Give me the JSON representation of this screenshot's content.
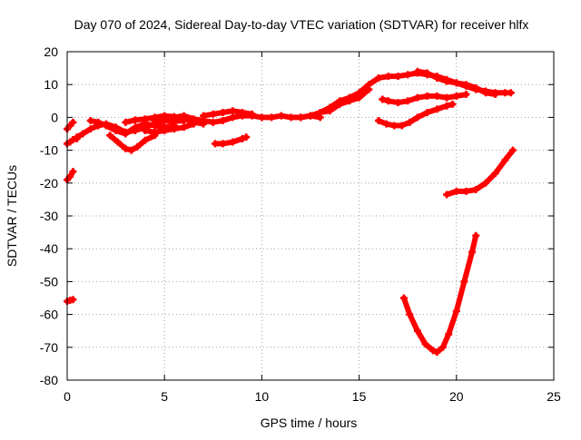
{
  "chart_data": {
    "type": "scatter",
    "title": "Day 070 of 2024, Sidereal Day-to-day VTEC variation (SDTVAR) for receiver hlfx",
    "xlabel": "GPS time / hours",
    "ylabel": "SDTVAR / TECUs",
    "xlim": [
      0,
      25
    ],
    "ylim": [
      -80,
      20
    ],
    "x_ticks": [
      "0",
      "5",
      "10",
      "15",
      "20",
      "25"
    ],
    "y_ticks": [
      "-80",
      "-70",
      "-60",
      "-50",
      "-40",
      "-30",
      "-20",
      "-10",
      "0",
      "10",
      "20"
    ],
    "grid": true,
    "legend": "none",
    "colors": {
      "series": "#ff0000",
      "grid": "#a0a0a0",
      "axis": "#000000"
    },
    "series": [
      {
        "x": [
          0.0,
          0.15,
          0.3
        ],
        "y": [
          -3.5,
          -2.5,
          -1.5
        ]
      },
      {
        "x": [
          0.0,
          0.15,
          0.3,
          0.5
        ],
        "y": [
          -8.0,
          -7.5,
          -6.8,
          -6.5
        ]
      },
      {
        "x": [
          0.0,
          0.15,
          0.3
        ],
        "y": [
          -19.0,
          -18.0,
          -16.5
        ]
      },
      {
        "x": [
          0.0,
          0.15,
          0.3
        ],
        "y": [
          -56.0,
          -55.7,
          -55.5
        ]
      },
      {
        "x": [
          0.5,
          0.8,
          1.2,
          1.6,
          2.0,
          2.5,
          3.0,
          3.5,
          4.0,
          4.5,
          5.0,
          5.5,
          6.0
        ],
        "y": [
          -6.0,
          -5.0,
          -3.5,
          -2.5,
          -2.0,
          -3.0,
          -4.5,
          -4.0,
          -3.0,
          -2.0,
          -1.0,
          -1.2,
          -1.0
        ]
      },
      {
        "x": [
          1.2,
          1.6,
          2.0,
          2.5,
          3.0,
          3.5,
          4.0,
          4.5,
          5.0,
          5.5
        ],
        "y": [
          -1.0,
          -1.5,
          -2.5,
          -4.0,
          -5.0,
          -3.0,
          -2.0,
          -2.5,
          -3.0,
          -2.5
        ]
      },
      {
        "x": [
          2.2,
          2.6,
          3.0,
          3.3,
          3.6,
          4.0,
          4.5
        ],
        "y": [
          -5.5,
          -7.5,
          -9.5,
          -10.0,
          -9.0,
          -7.0,
          -5.5
        ]
      },
      {
        "x": [
          3.0,
          3.5,
          4.0,
          4.5,
          5.0,
          5.5,
          6.0,
          6.5,
          7.0
        ],
        "y": [
          -1.5,
          -0.8,
          -0.5,
          0.0,
          0.5,
          0.2,
          -0.5,
          -1.5,
          -2.0
        ]
      },
      {
        "x": [
          4.0,
          4.5,
          5.0,
          5.5,
          6.0,
          6.5
        ],
        "y": [
          -4.0,
          -4.5,
          -4.0,
          -3.5,
          -3.0,
          -2.0
        ]
      },
      {
        "x": [
          4.5,
          5.0,
          5.5,
          6.0,
          6.5,
          7.0,
          7.5,
          8.0,
          8.5,
          9.0,
          9.5,
          10.0,
          10.5,
          11.0,
          11.5,
          12.0,
          12.5,
          13.0
        ],
        "y": [
          -1.0,
          -0.5,
          0.0,
          0.5,
          -0.5,
          -1.0,
          -1.5,
          -1.0,
          0.0,
          0.5,
          0.5,
          0.0,
          0.0,
          0.5,
          0.0,
          0.0,
          0.5,
          0.0
        ]
      },
      {
        "x": [
          7.0,
          7.5,
          8.0,
          8.5,
          9.0,
          9.5
        ],
        "y": [
          0.5,
          1.0,
          1.5,
          2.0,
          1.5,
          1.0
        ]
      },
      {
        "x": [
          7.6,
          8.0,
          8.5,
          9.0,
          9.2
        ],
        "y": [
          -8.0,
          -8.0,
          -7.5,
          -6.5,
          -6.0
        ]
      },
      {
        "x": [
          12.0,
          12.5,
          13.0,
          13.5,
          14.0,
          14.5,
          15.0,
          15.5,
          16.0,
          16.5,
          17.0,
          17.5,
          18.0,
          18.5,
          19.0,
          19.5,
          20.0,
          20.5,
          21.0,
          21.5,
          22.0,
          22.5,
          22.8
        ],
        "y": [
          0.0,
          0.5,
          1.5,
          3.0,
          5.0,
          6.0,
          7.5,
          10.0,
          12.0,
          12.5,
          12.5,
          13.0,
          13.5,
          13.0,
          12.5,
          11.5,
          10.5,
          9.5,
          8.5,
          8.0,
          7.5,
          7.5,
          7.5
        ]
      },
      {
        "x": [
          13.0,
          13.5,
          14.0,
          14.5,
          15.0,
          15.5
        ],
        "y": [
          1.5,
          2.0,
          4.0,
          5.0,
          6.0,
          8.5
        ]
      },
      {
        "x": [
          18.0,
          18.5,
          19.0,
          19.5,
          20.0,
          20.5,
          21.0,
          21.5,
          22.0
        ],
        "y": [
          14.0,
          13.5,
          12.0,
          11.0,
          10.5,
          10.0,
          9.0,
          7.5,
          7.0
        ]
      },
      {
        "x": [
          16.2,
          16.5,
          17.0,
          17.5,
          18.0,
          18.5,
          19.0,
          19.5,
          20.0,
          20.5
        ],
        "y": [
          5.5,
          5.0,
          4.5,
          5.0,
          6.0,
          6.5,
          6.5,
          6.0,
          6.5,
          7.0
        ]
      },
      {
        "x": [
          16.0,
          16.4,
          16.8,
          17.2,
          17.6,
          18.0,
          18.5,
          19.0,
          19.5,
          19.8
        ],
        "y": [
          -1.0,
          -2.0,
          -2.5,
          -2.5,
          -1.5,
          0.0,
          1.5,
          2.5,
          3.5,
          4.0
        ]
      },
      {
        "x": [
          19.5,
          20.0,
          20.5,
          21.0,
          21.5,
          22.0,
          22.5,
          22.9
        ],
        "y": [
          -23.5,
          -22.5,
          -22.5,
          -22.0,
          -20.0,
          -17.0,
          -13.0,
          -10.0
        ]
      },
      {
        "x": [
          17.3,
          17.6,
          18.0,
          18.4,
          18.8,
          19.0,
          19.3,
          19.6,
          20.0,
          20.4,
          20.8,
          21.0
        ],
        "y": [
          -55.0,
          -60.0,
          -65.0,
          -69.0,
          -71.0,
          -71.5,
          -70.0,
          -66.0,
          -59.0,
          -50.0,
          -41.0,
          -36.0
        ]
      }
    ]
  }
}
